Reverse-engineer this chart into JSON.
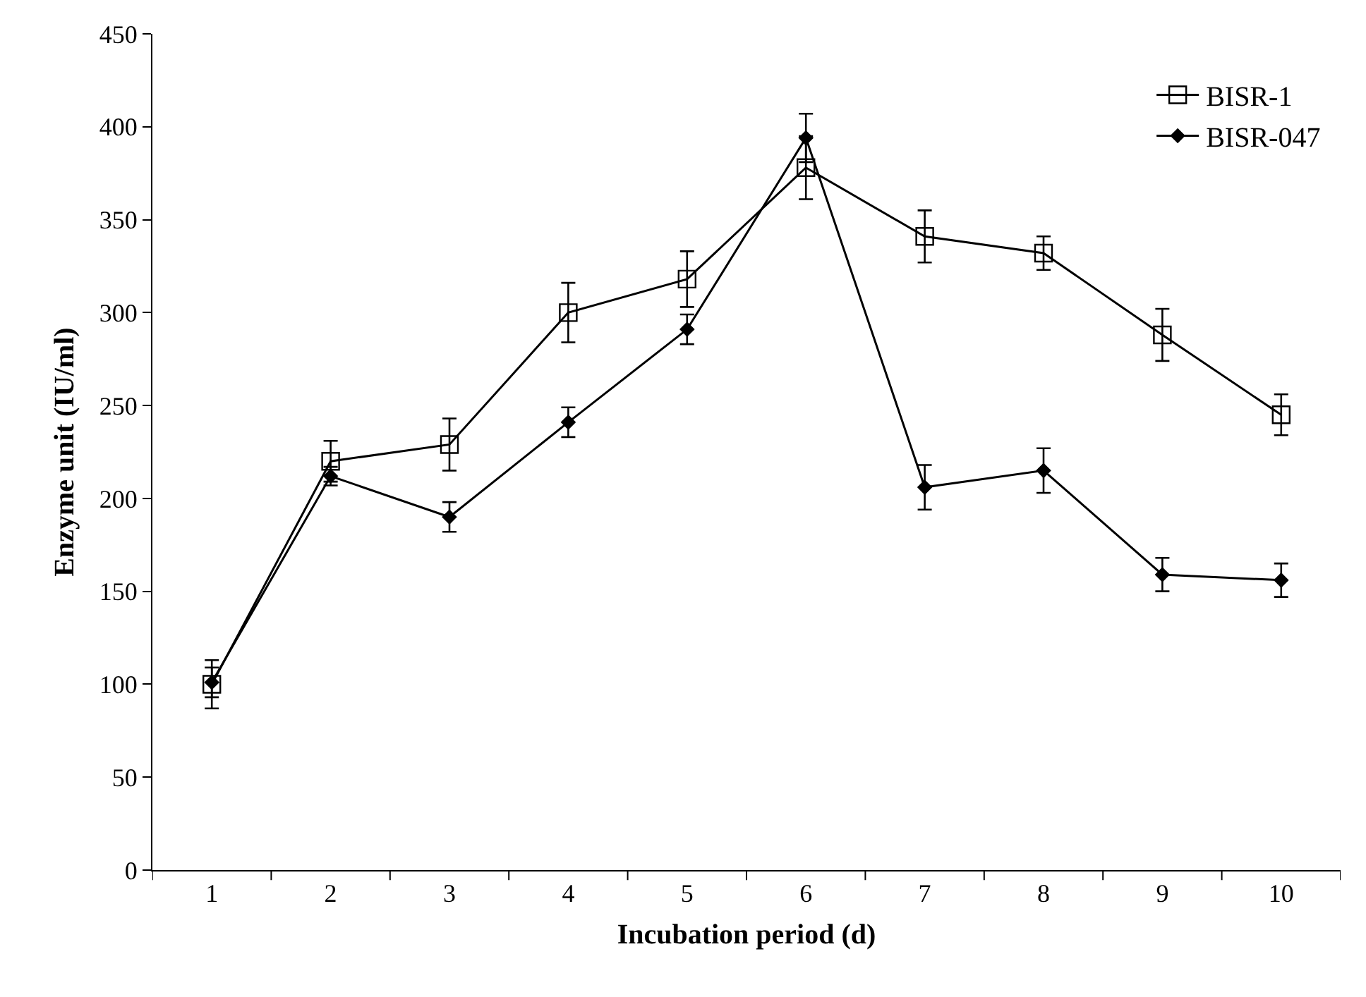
{
  "chart_data": {
    "type": "line",
    "xlabel": "Incubation period (d)",
    "ylabel": "Enzyme unit (IU/ml)",
    "categories": [
      "1",
      "2",
      "3",
      "4",
      "5",
      "6",
      "7",
      "8",
      "9",
      "10"
    ],
    "ylim": [
      0,
      450
    ],
    "yticks": [
      0,
      50,
      100,
      150,
      200,
      250,
      300,
      350,
      400,
      450
    ],
    "grid": false,
    "legend": "top right",
    "line_style": "solid",
    "series": [
      {
        "name": "BISR-1",
        "color": "#000000",
        "marker": "square",
        "values": [
          100,
          220,
          229,
          300,
          318,
          378,
          341,
          332,
          288,
          245
        ],
        "errors": [
          13,
          11,
          14,
          16,
          15,
          17,
          14,
          9,
          14,
          11
        ]
      },
      {
        "name": "BISR-047",
        "color": "#000000",
        "marker": "diamond",
        "values": [
          101,
          212,
          190,
          241,
          291,
          394,
          206,
          215,
          159,
          156
        ],
        "errors": [
          8,
          5,
          8,
          8,
          8,
          13,
          12,
          12,
          9,
          9
        ]
      }
    ]
  }
}
